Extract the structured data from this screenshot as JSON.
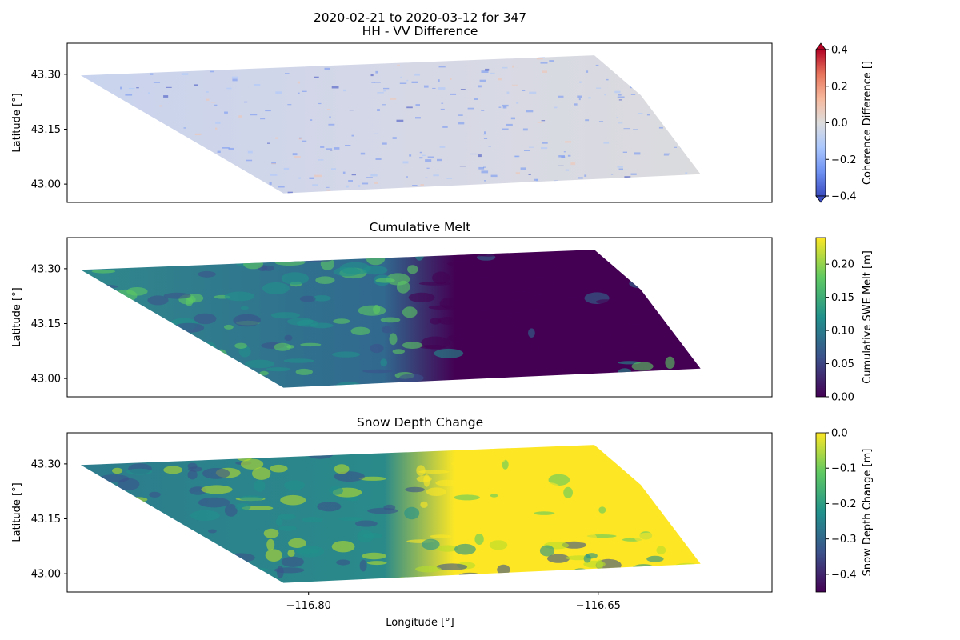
{
  "figure": {
    "suptitle_line1": "2020-02-21 to 2020-03-12 for 347",
    "suptitle_line2": "HH - VV Difference",
    "xlabel": "Longitude [°]"
  },
  "chart_data": [
    {
      "type": "heatmap",
      "title": "HH - VV Difference",
      "xlabel": "Longitude [°]",
      "ylabel": "Latitude [°]",
      "xlim": [
        -116.925,
        -116.56
      ],
      "ylim": [
        42.95,
        43.385
      ],
      "xticks": [
        -116.8,
        -116.65
      ],
      "xtick_labels": [
        "−116.80",
        "−116.65"
      ],
      "yticks": [
        43.0,
        43.15,
        43.3
      ],
      "ytick_labels": [
        "43.00",
        "43.15",
        "43.30"
      ],
      "colormap": "coolwarm",
      "colorbar": {
        "label": "Coherence Difference []",
        "range": [
          -0.4,
          0.4
        ],
        "ticks": [
          -0.4,
          -0.2,
          0.0,
          0.2,
          0.4
        ],
        "tick_labels": [
          "−0.4",
          "−0.2",
          "0.0",
          "0.2",
          "0.4"
        ],
        "extend": "both",
        "colors": [
          "#3b4cc0",
          "#6f92f3",
          "#aac7fd",
          "#dddddd",
          "#f7b89c",
          "#e7745b",
          "#b40426"
        ]
      }
    },
    {
      "type": "heatmap",
      "title": "Cumulative Melt",
      "xlabel": "",
      "ylabel": "Latitude [°]",
      "xlim": [
        -116.925,
        -116.56
      ],
      "ylim": [
        42.95,
        43.385
      ],
      "yticks": [
        43.0,
        43.15,
        43.3
      ],
      "ytick_labels": [
        "43.00",
        "43.15",
        "43.30"
      ],
      "colormap": "viridis",
      "colorbar": {
        "label": "Cumulative SWE Melt [m]",
        "range": [
          0.0,
          0.24
        ],
        "ticks": [
          0.0,
          0.05,
          0.1,
          0.15,
          0.2
        ],
        "tick_labels": [
          "0.00",
          "0.05",
          "0.10",
          "0.15",
          "0.20"
        ],
        "extend": "neither",
        "colors": [
          "#440154",
          "#3b528b",
          "#21918c",
          "#5ec962",
          "#fde725"
        ]
      }
    },
    {
      "type": "heatmap",
      "title": "Snow Depth Change",
      "xlabel": "Longitude [°]",
      "ylabel": "Latitude [°]",
      "xlim": [
        -116.925,
        -116.56
      ],
      "ylim": [
        42.95,
        43.385
      ],
      "xticks": [
        -116.8,
        -116.65
      ],
      "xtick_labels": [
        "−116.80",
        "−116.65"
      ],
      "yticks": [
        43.0,
        43.15,
        43.3
      ],
      "ytick_labels": [
        "43.00",
        "43.15",
        "43.30"
      ],
      "colormap": "viridis",
      "colorbar": {
        "label": "Snow Depth Change [m]",
        "range": [
          -0.45,
          0.0
        ],
        "ticks": [
          -0.4,
          -0.3,
          -0.2,
          -0.1,
          0.0
        ],
        "tick_labels": [
          "−0.4",
          "−0.3",
          "−0.2",
          "−0.1",
          "0.0"
        ],
        "extend": "neither",
        "colors": [
          "#440154",
          "#3b528b",
          "#21918c",
          "#5ec962",
          "#fde725"
        ]
      }
    }
  ]
}
